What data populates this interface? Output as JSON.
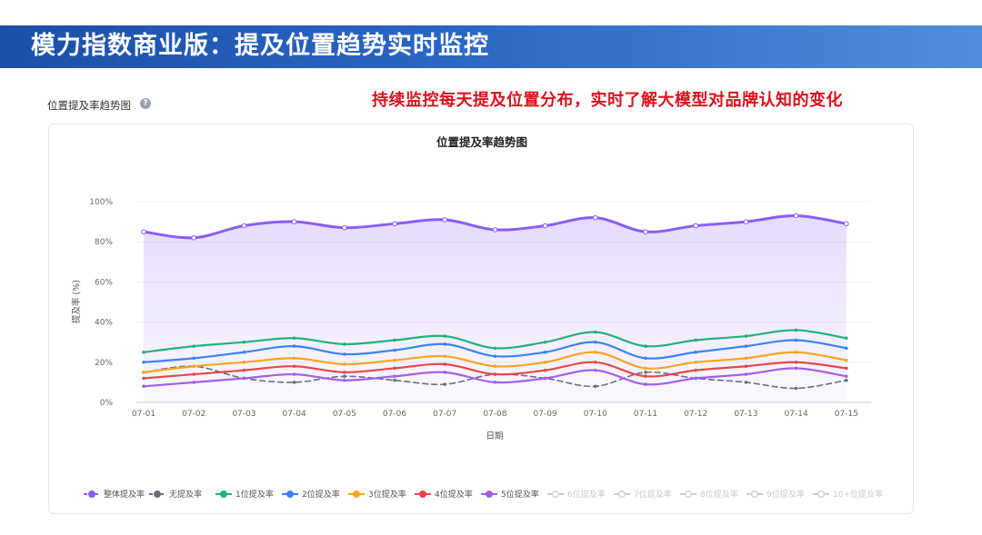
{
  "banner": {
    "title": "模力指数商业版：提及位置趋势实时监控"
  },
  "section": {
    "label": "位置提及率趋势图",
    "help_icon": "question-circle-icon"
  },
  "headline": "持续监控每天提及位置分布，实时了解大模型对品牌认知的变化",
  "chart_data": {
    "type": "line",
    "title": "位置提及率趋势图",
    "xlabel": "日期",
    "ylabel": "提及率 (%)",
    "ylim": [
      0,
      100
    ],
    "yticks": [
      "0%",
      "20%",
      "40%",
      "60%",
      "80%",
      "100%"
    ],
    "categories": [
      "07-01",
      "07-02",
      "07-03",
      "07-04",
      "07-05",
      "07-06",
      "07-07",
      "07-08",
      "07-09",
      "07-10",
      "07-11",
      "07-12",
      "07-13",
      "07-14",
      "07-15"
    ],
    "grid": "horizontal",
    "legend_position": "bottom",
    "series": [
      {
        "name": "整体提及率",
        "color": "#8b5cf6",
        "style": "area-line",
        "values": [
          85,
          82,
          88,
          90,
          87,
          89,
          91,
          86,
          88,
          92,
          85,
          88,
          90,
          93,
          89
        ]
      },
      {
        "name": "无提及率",
        "color": "#6b6f80",
        "style": "dashed",
        "values": [
          15,
          18,
          12,
          10,
          13,
          11,
          9,
          14,
          12,
          8,
          15,
          12,
          10,
          7,
          11
        ]
      },
      {
        "name": "1位提及率",
        "color": "#22b07d",
        "style": "solid",
        "values": [
          25,
          28,
          30,
          32,
          29,
          31,
          33,
          27,
          30,
          35,
          28,
          31,
          33,
          36,
          32
        ]
      },
      {
        "name": "2位提及率",
        "color": "#3b82f6",
        "style": "solid",
        "values": [
          20,
          22,
          25,
          28,
          24,
          26,
          29,
          23,
          25,
          30,
          22,
          25,
          28,
          31,
          27
        ]
      },
      {
        "name": "3位提及率",
        "color": "#f5a524",
        "style": "solid",
        "values": [
          15,
          18,
          20,
          22,
          19,
          21,
          23,
          18,
          20,
          25,
          17,
          20,
          22,
          25,
          21
        ]
      },
      {
        "name": "4位提及率",
        "color": "#e5484d",
        "style": "solid",
        "values": [
          12,
          14,
          16,
          18,
          15,
          17,
          19,
          14,
          16,
          20,
          13,
          16,
          18,
          20,
          17
        ]
      },
      {
        "name": "5位提及率",
        "color": "#a45de8",
        "style": "solid",
        "values": [
          8,
          10,
          12,
          14,
          11,
          13,
          15,
          10,
          12,
          16,
          9,
          12,
          14,
          17,
          13
        ]
      }
    ],
    "legend": [
      {
        "label": "整体提及率",
        "color": "#8b5cf6",
        "active": true,
        "dashed": true
      },
      {
        "label": "无提及率",
        "color": "#6b6f80",
        "active": true,
        "dashed": true
      },
      {
        "label": "1位提及率",
        "color": "#22b07d",
        "active": true,
        "dashed": false
      },
      {
        "label": "2位提及率",
        "color": "#3b82f6",
        "active": true,
        "dashed": false
      },
      {
        "label": "3位提及率",
        "color": "#f5a524",
        "active": true,
        "dashed": false
      },
      {
        "label": "4位提及率",
        "color": "#e5484d",
        "active": true,
        "dashed": false
      },
      {
        "label": "5位提及率",
        "color": "#a45de8",
        "active": true,
        "dashed": false
      },
      {
        "label": "6位提及率",
        "color": "#cccccc",
        "active": false,
        "dashed": false
      },
      {
        "label": "7位提及率",
        "color": "#cccccc",
        "active": false,
        "dashed": false
      },
      {
        "label": "8位提及率",
        "color": "#cccccc",
        "active": false,
        "dashed": false
      },
      {
        "label": "9位提及率",
        "color": "#cccccc",
        "active": false,
        "dashed": false
      },
      {
        "label": "10+位提及率",
        "color": "#cccccc",
        "active": false,
        "dashed": false
      }
    ]
  }
}
